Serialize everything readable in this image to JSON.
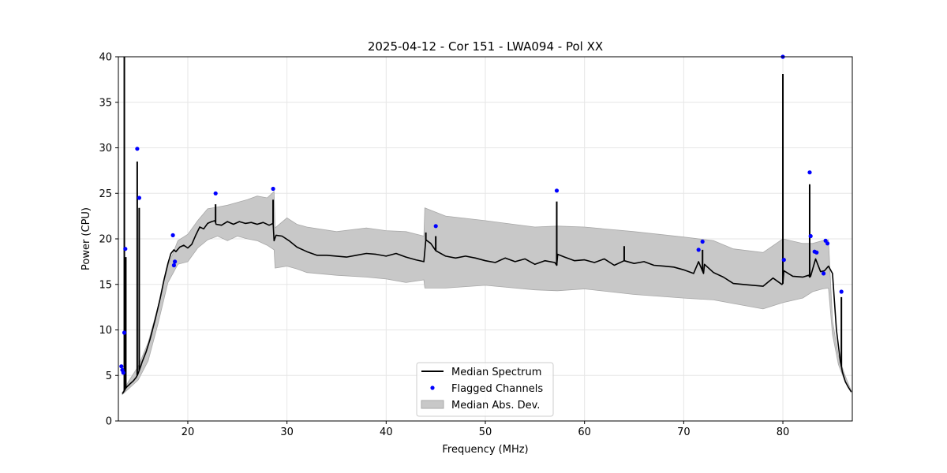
{
  "chart_data": {
    "type": "line",
    "title": "2025-04-12 - Cor 151 - LWA094 - Pol XX",
    "xlabel": "Frequency (MHz)",
    "ylabel": "Power (CPU)",
    "xlim": [
      13.0,
      87.0
    ],
    "ylim": [
      0,
      40
    ],
    "xticks": [
      20,
      30,
      40,
      50,
      60,
      70,
      80
    ],
    "yticks": [
      0,
      5,
      10,
      15,
      20,
      25,
      30,
      35,
      40
    ],
    "grid": true,
    "legend_position": "lower-center",
    "series": [
      {
        "name": "Median Spectrum",
        "kind": "line",
        "color": "#000000",
        "x": [
          13.4,
          13.6,
          13.75,
          13.9,
          14.0,
          14.2,
          14.5,
          14.8,
          14.95,
          15.05,
          15.15,
          15.25,
          15.4,
          15.8,
          16.2,
          16.7,
          17.2,
          17.6,
          18.0,
          18.3,
          18.6,
          18.8,
          19.2,
          19.6,
          20.0,
          20.4,
          20.8,
          21.2,
          21.6,
          22.0,
          22.4,
          22.75,
          22.85,
          23.4,
          24.0,
          24.6,
          25.2,
          25.8,
          26.4,
          27.0,
          27.6,
          28.2,
          28.6,
          28.7,
          28.9,
          29.5,
          30.2,
          31.0,
          32.0,
          33.0,
          34.0,
          35.0,
          36.0,
          37.0,
          38.0,
          39.0,
          40.0,
          41.0,
          42.0,
          43.0,
          43.8,
          44.0,
          44.5,
          45.0,
          46.0,
          47.0,
          48.0,
          49.0,
          50.0,
          51.0,
          52.0,
          53.0,
          54.0,
          55.0,
          56.0,
          57.0,
          57.2,
          57.3,
          58.0,
          59.0,
          60.0,
          61.0,
          62.0,
          63.0,
          64.0,
          65.0,
          66.0,
          67.0,
          68.0,
          69.0,
          70.0,
          71.0,
          71.5,
          72.0,
          72.1,
          73.0,
          74.0,
          75.0,
          76.0,
          77.0,
          78.0,
          79.0,
          79.9,
          80.0,
          80.1,
          81.0,
          82.0,
          82.6,
          82.7,
          82.8,
          83.3,
          83.8,
          84.2,
          84.6,
          85.0,
          85.4,
          85.8,
          85.9,
          86.0,
          86.3,
          86.6,
          86.9
        ],
        "y": [
          3.0,
          3.3,
          3.6,
          3.8,
          3.9,
          4.1,
          4.4,
          4.8,
          5.1,
          5.4,
          5.7,
          6.0,
          6.5,
          7.6,
          9.0,
          11.1,
          13.4,
          15.5,
          17.3,
          18.4,
          18.8,
          18.6,
          19.1,
          19.3,
          19.0,
          19.4,
          20.4,
          21.3,
          21.1,
          21.7,
          21.9,
          22.0,
          21.6,
          21.5,
          21.9,
          21.6,
          21.9,
          21.7,
          21.8,
          21.6,
          21.8,
          21.5,
          21.7,
          19.8,
          20.4,
          20.3,
          19.8,
          19.1,
          18.6,
          18.2,
          18.2,
          18.1,
          18.0,
          18.2,
          18.4,
          18.3,
          18.1,
          18.4,
          18.0,
          17.7,
          17.5,
          19.9,
          19.5,
          18.7,
          18.1,
          17.9,
          18.1,
          17.9,
          17.6,
          17.4,
          17.9,
          17.5,
          17.8,
          17.2,
          17.6,
          17.4,
          17.1,
          18.3,
          18.0,
          17.6,
          17.7,
          17.4,
          17.8,
          17.1,
          17.6,
          17.3,
          17.5,
          17.1,
          17.0,
          16.9,
          16.6,
          16.2,
          17.5,
          16.2,
          17.2,
          16.3,
          15.8,
          15.1,
          15.0,
          14.9,
          14.8,
          15.7,
          15.0,
          15.1,
          16.5,
          15.9,
          15.8,
          16.0,
          15.8,
          15.9,
          17.8,
          16.4,
          16.5,
          17.0,
          16.2,
          10.0,
          6.5,
          6.0,
          5.4,
          4.3,
          3.7,
          3.2
        ]
      },
      {
        "name": "Flagged Channels",
        "kind": "scatter",
        "color": "#0000ff",
        "x": [
          13.3,
          13.4,
          13.5,
          13.6,
          13.7,
          14.9,
          15.1,
          18.5,
          18.6,
          18.7,
          22.8,
          28.6,
          45.0,
          57.2,
          71.5,
          71.9,
          80.0,
          80.1,
          82.7,
          82.8,
          83.2,
          83.4,
          84.1,
          84.3,
          84.5,
          85.9
        ],
        "y": [
          6.0,
          5.6,
          5.3,
          9.7,
          18.9,
          29.9,
          24.5,
          20.4,
          17.1,
          17.5,
          25.0,
          25.5,
          21.4,
          25.3,
          18.8,
          19.7,
          40.0,
          17.7,
          27.3,
          20.3,
          18.6,
          18.5,
          16.2,
          19.8,
          19.5,
          14.2
        ]
      },
      {
        "name": "Median Abs. Dev.",
        "kind": "band",
        "color": "#c8c8c8",
        "x": [
          13.4,
          14.0,
          15.0,
          16.0,
          17.0,
          18.0,
          19.0,
          20.0,
          21.0,
          22.0,
          23.0,
          24.0,
          25.0,
          26.0,
          27.0,
          28.0,
          28.7,
          28.8,
          30.0,
          31.0,
          32.0,
          35.0,
          38.0,
          40.0,
          42.0,
          43.8,
          43.9,
          46.0,
          50.0,
          55.0,
          57.2,
          57.3,
          60.0,
          65.0,
          70.0,
          73.0,
          75.0,
          78.0,
          80.0,
          82.0,
          83.0,
          84.0,
          84.6,
          85.0,
          85.6,
          86.2,
          86.9
        ],
        "lower": [
          2.9,
          3.5,
          4.5,
          6.6,
          10.7,
          15.2,
          17.2,
          17.5,
          19.0,
          19.9,
          20.3,
          19.8,
          20.3,
          20.0,
          19.8,
          19.3,
          18.8,
          16.8,
          17.0,
          16.7,
          16.3,
          16.0,
          15.8,
          15.6,
          15.2,
          15.5,
          14.6,
          14.6,
          14.9,
          14.4,
          14.3,
          14.3,
          14.5,
          13.9,
          13.5,
          13.3,
          12.9,
          12.3,
          13.0,
          13.5,
          14.2,
          14.5,
          14.6,
          9.5,
          6.2,
          4.5,
          3.1
        ],
        "upper": [
          3.1,
          4.3,
          6.0,
          8.6,
          12.6,
          17.0,
          19.8,
          20.5,
          22.0,
          23.3,
          23.5,
          23.7,
          24.0,
          24.3,
          24.7,
          24.5,
          25.2,
          21.2,
          22.3,
          21.6,
          21.3,
          20.8,
          21.2,
          20.9,
          20.8,
          20.3,
          23.4,
          22.5,
          22.0,
          21.3,
          21.4,
          21.4,
          21.3,
          20.8,
          20.2,
          19.8,
          18.9,
          18.5,
          20.0,
          19.5,
          19.5,
          19.8,
          19.9,
          11.0,
          7.2,
          5.2,
          3.3
        ]
      }
    ],
    "spikes": [
      {
        "x": 13.6,
        "y": 40.0
      },
      {
        "x": 13.75,
        "y": 18.0
      },
      {
        "x": 14.9,
        "y": 28.5
      },
      {
        "x": 15.1,
        "y": 23.4
      },
      {
        "x": 22.8,
        "y": 23.8
      },
      {
        "x": 28.6,
        "y": 24.3
      },
      {
        "x": 44.0,
        "y": 20.7
      },
      {
        "x": 45.0,
        "y": 20.3
      },
      {
        "x": 57.2,
        "y": 24.1
      },
      {
        "x": 64.0,
        "y": 19.2
      },
      {
        "x": 71.9,
        "y": 18.8
      },
      {
        "x": 80.0,
        "y": 38.1
      },
      {
        "x": 82.7,
        "y": 26.0
      },
      {
        "x": 85.9,
        "y": 13.6
      }
    ]
  }
}
